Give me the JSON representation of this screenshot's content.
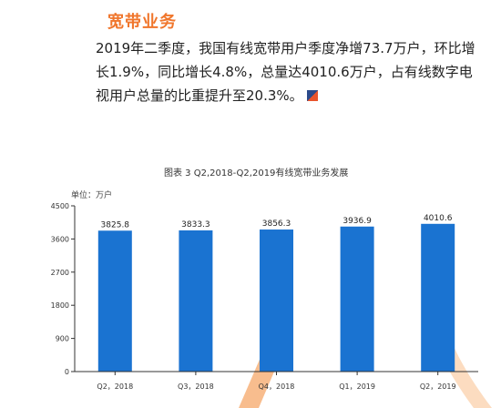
{
  "section": {
    "heading": "宽带业务"
  },
  "paragraph": {
    "text": "2019年二季度，我国有线宽带用户季度净增73.7万户，环比增长1.9%，同比增长4.8%，总量达4010.6万户，占有线数字电视用户总量的比重提升至20.3%。"
  },
  "colors": {
    "heading": "#f0762c",
    "bar": "#1a73d1",
    "decor_orange": "#f7b27a",
    "decor_orange_light": "#fbd3b0"
  },
  "chart_data": {
    "type": "bar",
    "title": "图表 3 Q2,2018-Q2,2019有线宽带业务发展",
    "unit_label": "单位：万户",
    "categories": [
      "Q2，2018",
      "Q3，2018",
      "Q4，2018",
      "Q1，2019",
      "Q2，2019"
    ],
    "values": [
      3825.8,
      3833.3,
      3856.3,
      3936.9,
      4010.6
    ],
    "value_labels": [
      "3825.8",
      "3833.3",
      "3856.3",
      "3936.9",
      "4010.6"
    ],
    "yticks": [
      "0",
      "900",
      "1800",
      "2700",
      "3600",
      "4500"
    ],
    "ylim": [
      0,
      4500
    ],
    "grid": false,
    "legend": false
  }
}
